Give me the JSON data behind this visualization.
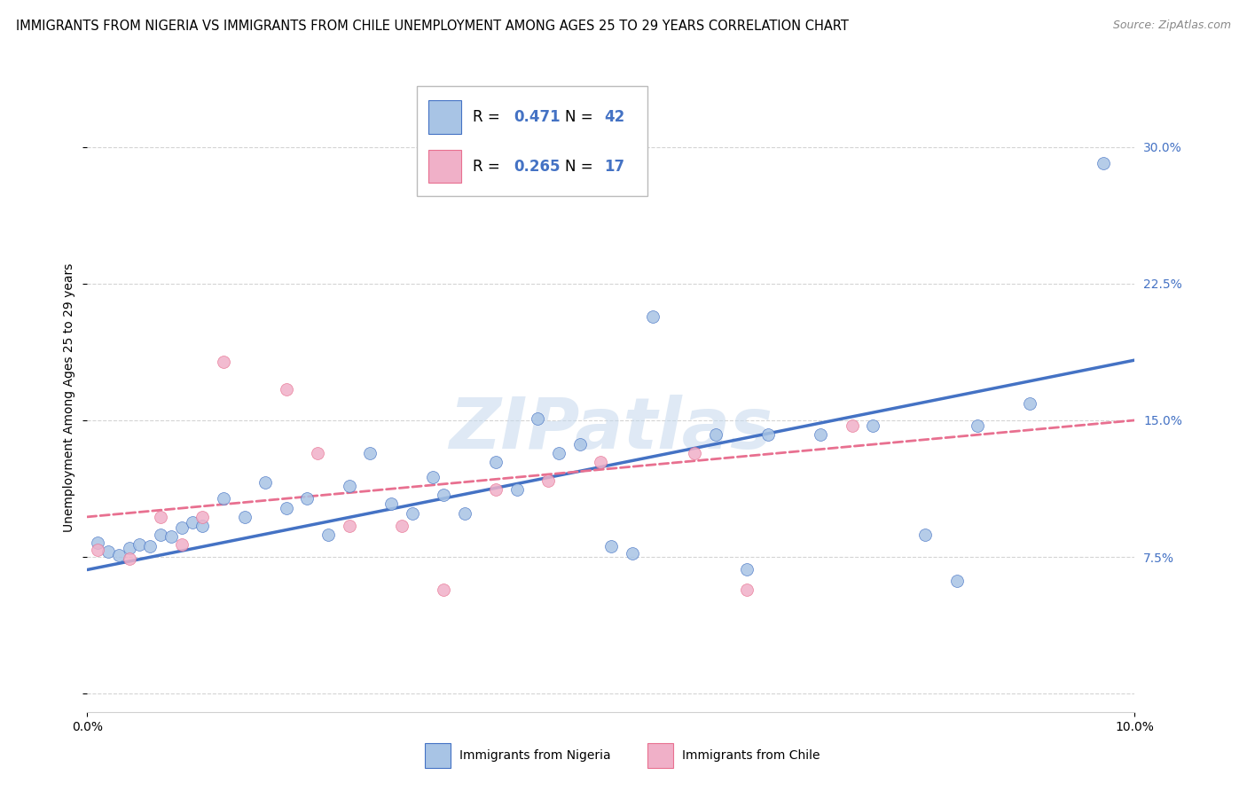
{
  "title": "IMMIGRANTS FROM NIGERIA VS IMMIGRANTS FROM CHILE UNEMPLOYMENT AMONG AGES 25 TO 29 YEARS CORRELATION CHART",
  "source": "Source: ZipAtlas.com",
  "ylabel": "Unemployment Among Ages 25 to 29 years",
  "xlim": [
    0.0,
    0.1
  ],
  "ylim": [
    -0.01,
    0.335
  ],
  "ytick_values": [
    0.0,
    0.075,
    0.15,
    0.225,
    0.3
  ],
  "ytick_labels": [
    "",
    "7.5%",
    "15.0%",
    "22.5%",
    "30.0%"
  ],
  "xtick_values": [
    0.0,
    0.1
  ],
  "xtick_labels": [
    "0.0%",
    "10.0%"
  ],
  "nigeria_color": "#a8c4e5",
  "chile_color": "#f0b0c8",
  "nigeria_line_color": "#4472c4",
  "chile_line_color": "#e87090",
  "background_color": "#ffffff",
  "grid_color": "#d0d0d0",
  "nigeria_scatter_x": [
    0.001,
    0.002,
    0.003,
    0.004,
    0.005,
    0.006,
    0.007,
    0.008,
    0.009,
    0.01,
    0.011,
    0.013,
    0.015,
    0.017,
    0.019,
    0.021,
    0.023,
    0.025,
    0.027,
    0.029,
    0.031,
    0.033,
    0.034,
    0.036,
    0.039,
    0.041,
    0.043,
    0.045,
    0.047,
    0.05,
    0.052,
    0.054,
    0.06,
    0.063,
    0.065,
    0.07,
    0.075,
    0.08,
    0.083,
    0.085,
    0.09,
    0.097
  ],
  "nigeria_scatter_y": [
    0.083,
    0.078,
    0.076,
    0.08,
    0.082,
    0.081,
    0.087,
    0.086,
    0.091,
    0.094,
    0.092,
    0.107,
    0.097,
    0.116,
    0.102,
    0.107,
    0.087,
    0.114,
    0.132,
    0.104,
    0.099,
    0.119,
    0.109,
    0.099,
    0.127,
    0.112,
    0.151,
    0.132,
    0.137,
    0.081,
    0.077,
    0.207,
    0.142,
    0.068,
    0.142,
    0.142,
    0.147,
    0.087,
    0.062,
    0.147,
    0.159,
    0.291
  ],
  "chile_scatter_x": [
    0.001,
    0.004,
    0.007,
    0.009,
    0.011,
    0.013,
    0.019,
    0.022,
    0.025,
    0.03,
    0.034,
    0.039,
    0.044,
    0.049,
    0.058,
    0.063,
    0.073
  ],
  "chile_scatter_y": [
    0.079,
    0.074,
    0.097,
    0.082,
    0.097,
    0.182,
    0.167,
    0.132,
    0.092,
    0.092,
    0.057,
    0.112,
    0.117,
    0.127,
    0.132,
    0.057,
    0.147
  ],
  "nigeria_trend_x": [
    0.0,
    0.1
  ],
  "nigeria_trend_y": [
    0.068,
    0.183
  ],
  "chile_trend_x": [
    0.0,
    0.1
  ],
  "chile_trend_y": [
    0.097,
    0.15
  ],
  "watermark": "ZIPatlas",
  "title_fontsize": 10.5,
  "source_fontsize": 9,
  "ylabel_fontsize": 10,
  "tick_fontsize": 10,
  "legend_fontsize": 12,
  "marker_size": 100,
  "marker_alpha": 0.85
}
